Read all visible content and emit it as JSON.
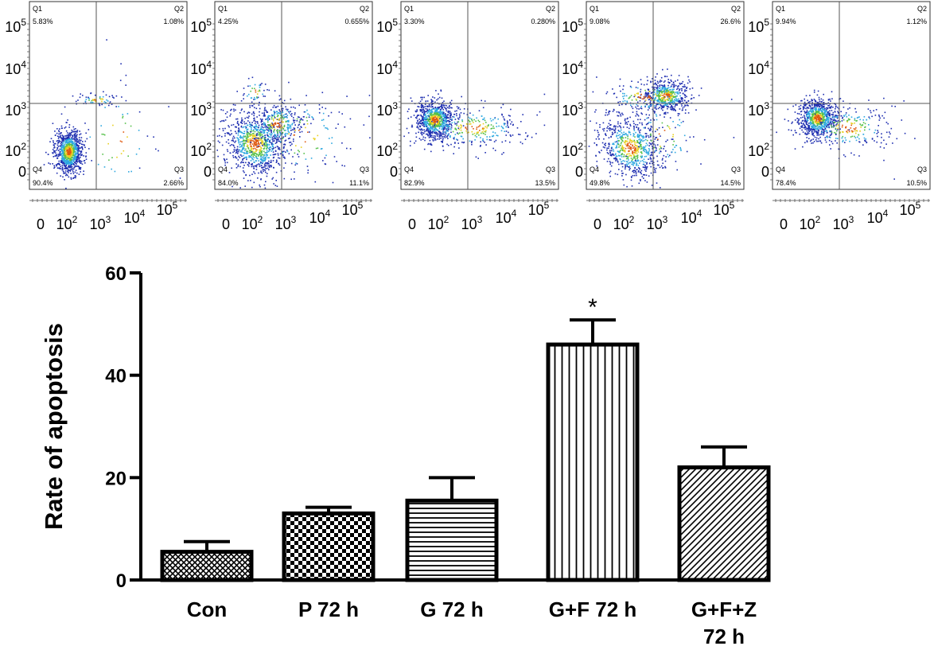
{
  "chart_data": [
    {
      "type": "scatter",
      "kind": "flow-cytometry-quadrant",
      "panels": [
        {
          "q1": "5.83%",
          "q2": "1.08%",
          "q3": "2.66%",
          "q4": "90.4%"
        },
        {
          "q1": "4.25%",
          "q2": "0.655%",
          "q3": "11.1%",
          "q4": "84.0%"
        },
        {
          "q1": "3.30%",
          "q2": "0.280%",
          "q3": "13.5%",
          "q4": "82.9%"
        },
        {
          "q1": "9.08%",
          "q2": "26.6%",
          "q3": "14.5%",
          "q4": "49.8%"
        },
        {
          "q1": "9.94%",
          "q2": "1.12%",
          "q3": "10.5%",
          "q4": "78.4%"
        }
      ],
      "quadrant_names": [
        "Q1",
        "Q2",
        "Q3",
        "Q4"
      ],
      "axis_ticks": [
        "0",
        "10",
        "10",
        "10",
        "10"
      ],
      "axis_tick_exponents": [
        "",
        "2",
        "3",
        "4",
        "5"
      ],
      "point_colors": [
        "#1f2fb0",
        "#2ea8e0",
        "#55c04a",
        "#e8d020",
        "#e05a10"
      ]
    },
    {
      "type": "bar",
      "categories": [
        "Con",
        "P 72 h",
        "G 72 h",
        "G+F 72 h",
        "G+F+Z 72 h"
      ],
      "category_lines": [
        [
          "Con"
        ],
        [
          "P 72 h"
        ],
        [
          "G 72 h"
        ],
        [
          "G+F 72 h"
        ],
        [
          "G+F+Z",
          "72 h"
        ]
      ],
      "values": [
        5.5,
        13,
        15.5,
        46,
        22
      ],
      "errors": [
        2,
        1.2,
        4.5,
        4.8,
        4
      ],
      "patterns": [
        "crosshatch",
        "checker",
        "horizontal",
        "vertical",
        "diagonal"
      ],
      "annotations": [
        {
          "category": "G+F 72 h",
          "text": "*"
        }
      ],
      "ylabel": "Rate of apoptosis",
      "yticks": [
        0,
        20,
        40,
        60
      ],
      "ylim": [
        0,
        60
      ]
    }
  ]
}
